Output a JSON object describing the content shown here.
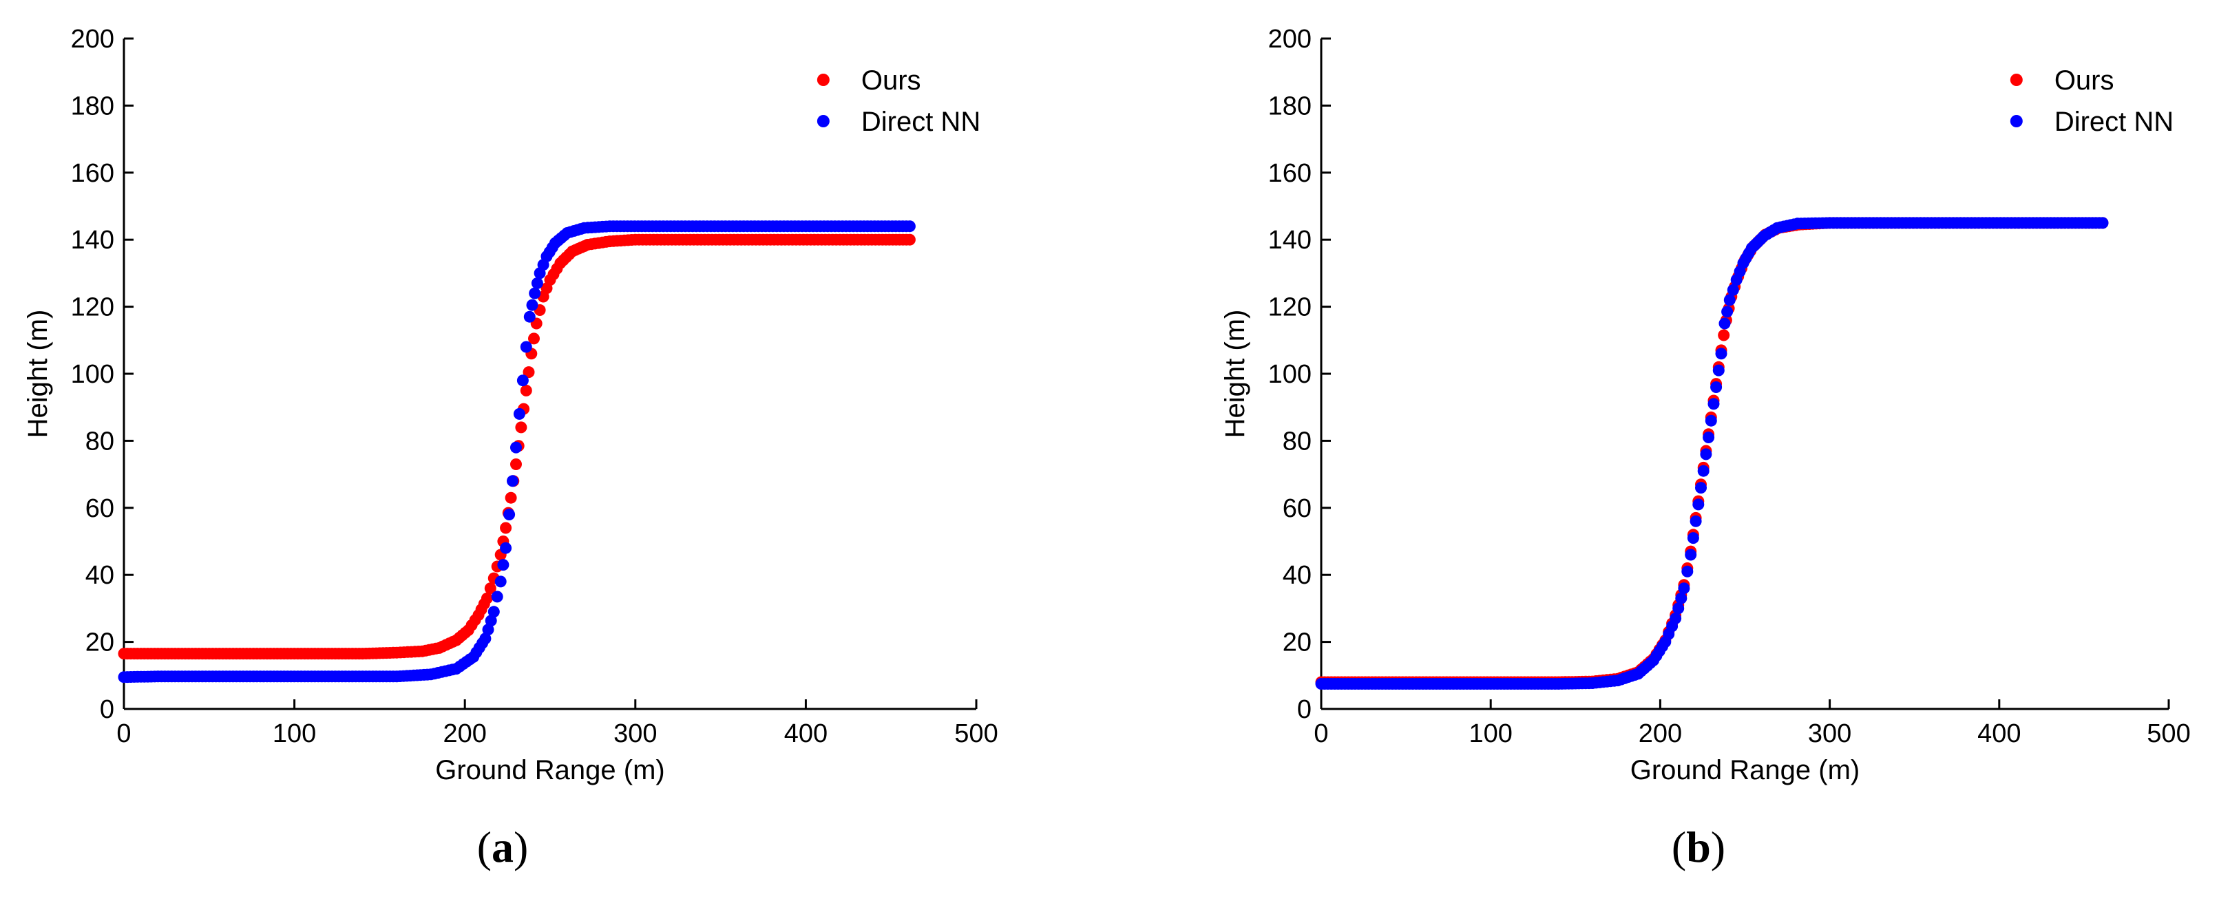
{
  "chart_data": [
    {
      "type": "scatter",
      "panel_label_open": "(",
      "panel_label_letter": "a",
      "panel_label_close": ")",
      "xlabel": "Ground Range (m)",
      "ylabel": "Height (m)",
      "xlim": [
        0,
        500
      ],
      "ylim": [
        0,
        200
      ],
      "xticks": [
        0,
        100,
        200,
        300,
        400,
        500
      ],
      "yticks": [
        0,
        20,
        40,
        60,
        80,
        100,
        120,
        140,
        160,
        180,
        200
      ],
      "grid": false,
      "legend_position": "top-right",
      "series": [
        {
          "name": "Ours",
          "color": "#ff0000",
          "points": [
            [
              0,
              16.5
            ],
            [
              20,
              16.5
            ],
            [
              40,
              16.5
            ],
            [
              60,
              16.5
            ],
            [
              80,
              16.5
            ],
            [
              100,
              16.5
            ],
            [
              120,
              16.5
            ],
            [
              140,
              16.5
            ],
            [
              160,
              16.8
            ],
            [
              175,
              17.2
            ],
            [
              185,
              18.2
            ],
            [
              195,
              20.5
            ],
            [
              202,
              23.5
            ],
            [
              208,
              28
            ],
            [
              213,
              33
            ],
            [
              217,
              39
            ],
            [
              221,
              46
            ],
            [
              224,
              54
            ],
            [
              227,
              63
            ],
            [
              230,
              73
            ],
            [
              233,
              84
            ],
            [
              236,
              95
            ],
            [
              239,
              106
            ],
            [
              242,
              115
            ],
            [
              246,
              123
            ],
            [
              250,
              128
            ],
            [
              256,
              133
            ],
            [
              263,
              136.5
            ],
            [
              272,
              138.5
            ],
            [
              285,
              139.5
            ],
            [
              300,
              140
            ],
            [
              330,
              140
            ],
            [
              360,
              140
            ],
            [
              390,
              140
            ],
            [
              420,
              140
            ],
            [
              445,
              140
            ],
            [
              461,
              140
            ]
          ]
        },
        {
          "name": "Direct NN",
          "color": "#0000ff",
          "points": [
            [
              0,
              9.5
            ],
            [
              20,
              9.7
            ],
            [
              40,
              9.7
            ],
            [
              60,
              9.7
            ],
            [
              80,
              9.7
            ],
            [
              100,
              9.7
            ],
            [
              120,
              9.7
            ],
            [
              140,
              9.7
            ],
            [
              160,
              9.7
            ],
            [
              180,
              10.3
            ],
            [
              195,
              12
            ],
            [
              205,
              15.5
            ],
            [
              212,
              21
            ],
            [
              217,
              29
            ],
            [
              221,
              38
            ],
            [
              224,
              48
            ],
            [
              226,
              58
            ],
            [
              228,
              68
            ],
            [
              230,
              78
            ],
            [
              232,
              88
            ],
            [
              234,
              98
            ],
            [
              236,
              108
            ],
            [
              238,
              117
            ],
            [
              241,
              124
            ],
            [
              244,
              130
            ],
            [
              248,
              135
            ],
            [
              253,
              139
            ],
            [
              260,
              142
            ],
            [
              270,
              143.5
            ],
            [
              285,
              144
            ],
            [
              310,
              144
            ],
            [
              340,
              144
            ],
            [
              370,
              144
            ],
            [
              400,
              144
            ],
            [
              430,
              144
            ],
            [
              461,
              144
            ]
          ]
        }
      ]
    },
    {
      "type": "scatter",
      "panel_label_open": "(",
      "panel_label_letter": "b",
      "panel_label_close": ")",
      "xlabel": "Ground Range (m)",
      "ylabel": "Height (m)",
      "xlim": [
        0,
        500
      ],
      "ylim": [
        0,
        200
      ],
      "xticks": [
        0,
        100,
        200,
        300,
        400,
        500
      ],
      "yticks": [
        0,
        20,
        40,
        60,
        80,
        100,
        120,
        140,
        160,
        180,
        200
      ],
      "grid": false,
      "legend_position": "top-right",
      "series": [
        {
          "name": "Ours",
          "color": "#ff0000",
          "points": [
            [
              0,
              8
            ],
            [
              20,
              8
            ],
            [
              40,
              8
            ],
            [
              60,
              8
            ],
            [
              80,
              8
            ],
            [
              100,
              8
            ],
            [
              120,
              8
            ],
            [
              140,
              8
            ],
            [
              160,
              8.2
            ],
            [
              175,
              9
            ],
            [
              187,
              11
            ],
            [
              196,
              15
            ],
            [
              203,
              20.5
            ],
            [
              209,
              28
            ],
            [
              214,
              37
            ],
            [
              218,
              47
            ],
            [
              221,
              57
            ],
            [
              224,
              67
            ],
            [
              227,
              77
            ],
            [
              230,
              87
            ],
            [
              233,
              97
            ],
            [
              236,
              107
            ],
            [
              239,
              116
            ],
            [
              242,
              123
            ],
            [
              246,
              129
            ],
            [
              250,
              134
            ],
            [
              255,
              138
            ],
            [
              262,
              141.5
            ],
            [
              270,
              143.5
            ],
            [
              282,
              144.5
            ],
            [
              300,
              145
            ],
            [
              330,
              145
            ],
            [
              360,
              145
            ],
            [
              390,
              145
            ],
            [
              420,
              145
            ],
            [
              445,
              145
            ],
            [
              461,
              145
            ]
          ]
        },
        {
          "name": "Direct NN",
          "color": "#0000ff",
          "points": [
            [
              0,
              7.5
            ],
            [
              20,
              7.5
            ],
            [
              40,
              7.5
            ],
            [
              60,
              7.5
            ],
            [
              80,
              7.5
            ],
            [
              100,
              7.5
            ],
            [
              120,
              7.5
            ],
            [
              140,
              7.5
            ],
            [
              160,
              7.7
            ],
            [
              175,
              8.5
            ],
            [
              187,
              10.5
            ],
            [
              196,
              14.5
            ],
            [
              203,
              20
            ],
            [
              209,
              27
            ],
            [
              214,
              36
            ],
            [
              218,
              46
            ],
            [
              221,
              56
            ],
            [
              224,
              66
            ],
            [
              227,
              76
            ],
            [
              230,
              86
            ],
            [
              233,
              96
            ],
            [
              236,
              106
            ],
            [
              238,
              115
            ],
            [
              241,
              122
            ],
            [
              245,
              128
            ],
            [
              249,
              133
            ],
            [
              254,
              137.5
            ],
            [
              261,
              141
            ],
            [
              269,
              143.5
            ],
            [
              281,
              144.8
            ],
            [
              300,
              145
            ],
            [
              330,
              145
            ],
            [
              360,
              145
            ],
            [
              390,
              145
            ],
            [
              420,
              145
            ],
            [
              445,
              145
            ],
            [
              461,
              145
            ]
          ]
        }
      ]
    }
  ]
}
